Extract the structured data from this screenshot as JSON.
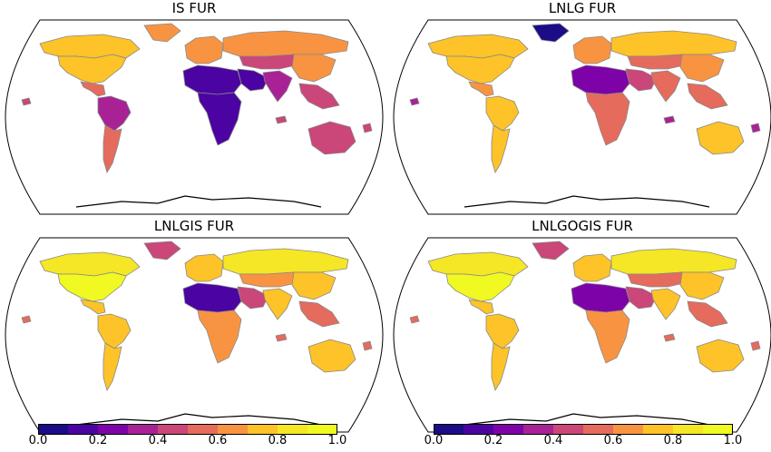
{
  "panels": [
    {
      "title": "IS FUR",
      "regions": {
        "north_america": 0.78,
        "canada": 0.7,
        "greenland": 0.6,
        "central_america": 0.55,
        "south_america": 0.3,
        "south_america_south": 0.55,
        "europe": 0.65,
        "north_africa": 0.1,
        "subsaharan_africa": 0.15,
        "middle_east": 0.1,
        "russia": 0.68,
        "central_asia": 0.45,
        "south_asia": 0.3,
        "east_asia": 0.6,
        "southeast_asia": 0.45,
        "australia": 0.45,
        "oceania": 0.45
      }
    },
    {
      "title": "LNLG FUR",
      "regions": {
        "north_america": 0.78,
        "canada": 0.72,
        "greenland": 0.05,
        "central_america": 0.62,
        "south_america": 0.75,
        "south_america_south": 0.7,
        "europe": 0.68,
        "north_africa": 0.25,
        "subsaharan_africa": 0.55,
        "middle_east": 0.45,
        "russia": 0.7,
        "central_asia": 0.55,
        "south_asia": 0.5,
        "east_asia": 0.65,
        "southeast_asia": 0.55,
        "australia": 0.72,
        "oceania": 0.3
      }
    },
    {
      "title": "LNLGIS FUR",
      "regions": {
        "north_america": 0.95,
        "canada": 0.8,
        "greenland": 0.45,
        "central_america": 0.7,
        "south_america": 0.75,
        "south_america_south": 0.7,
        "europe": 0.72,
        "north_africa": 0.15,
        "subsaharan_africa": 0.6,
        "middle_east": 0.45,
        "russia": 0.8,
        "central_asia": 0.6,
        "south_asia": 0.7,
        "east_asia": 0.75,
        "southeast_asia": 0.55,
        "australia": 0.75,
        "oceania": 0.55
      }
    },
    {
      "title": "LNLGOGIS FUR",
      "regions": {
        "north_america": 0.95,
        "canada": 0.82,
        "greenland": 0.4,
        "central_america": 0.7,
        "south_america": 0.75,
        "south_america_south": 0.72,
        "europe": 0.72,
        "north_africa": 0.2,
        "subsaharan_africa": 0.6,
        "middle_east": 0.4,
        "russia": 0.8,
        "central_asia": 0.55,
        "south_asia": 0.72,
        "east_asia": 0.75,
        "southeast_asia": 0.55,
        "australia": 0.75,
        "oceania": 0.55
      }
    }
  ],
  "colorbar": {
    "colormap": "plasma",
    "ticks": [
      "0.0",
      "0.2",
      "0.4",
      "0.6",
      "0.8",
      "1.0"
    ],
    "bins": 10,
    "range": [
      0.0,
      1.0
    ]
  },
  "colors": {
    "plasma_bins": [
      "#1a0d87",
      "#4b03a1",
      "#7d03a8",
      "#a82296",
      "#cb4679",
      "#e56b5d",
      "#f89441",
      "#fdc328",
      "#f5e626",
      "#f0f921"
    ],
    "coastline": "#000000",
    "borders": "#888888",
    "ocean": "#ffffff"
  }
}
